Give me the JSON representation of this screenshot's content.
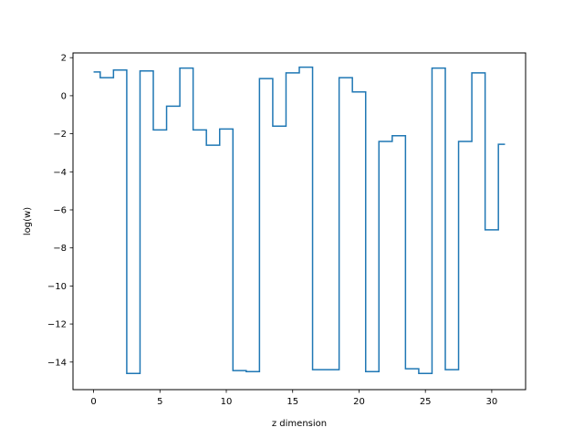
{
  "chart_data": {
    "type": "line",
    "step": "mid",
    "xlabel": "z dimension",
    "ylabel": "log(w)",
    "xlim": [
      -1.55,
      32.55
    ],
    "ylim": [
      -15.45,
      2.25
    ],
    "xticks": [
      0,
      5,
      10,
      15,
      20,
      25,
      30
    ],
    "yticks": [
      2,
      0,
      -2,
      -4,
      -6,
      -8,
      -10,
      -12,
      -14
    ],
    "ytick_labels": [
      "2",
      "0",
      "−2",
      "−4",
      "−6",
      "−8",
      "−10",
      "−12",
      "−14"
    ],
    "grid": false,
    "series": [
      {
        "color": "#1f77b4",
        "x": [
          0,
          1,
          2,
          3,
          4,
          5,
          6,
          7,
          8,
          9,
          10,
          11,
          12,
          13,
          14,
          15,
          16,
          17,
          18,
          19,
          20,
          21,
          22,
          23,
          24,
          25,
          26,
          27,
          28,
          29,
          30,
          31
        ],
        "y": [
          1.25,
          0.95,
          1.35,
          -14.6,
          1.3,
          -1.8,
          -0.55,
          1.45,
          -1.8,
          -2.6,
          -1.75,
          -14.45,
          -14.5,
          0.9,
          -1.6,
          1.2,
          1.5,
          -14.4,
          -14.4,
          0.95,
          0.2,
          -14.5,
          -2.4,
          -2.1,
          -14.35,
          -14.6,
          1.45,
          -14.4,
          -2.4,
          1.2,
          -7.05,
          -2.55
        ]
      }
    ]
  }
}
